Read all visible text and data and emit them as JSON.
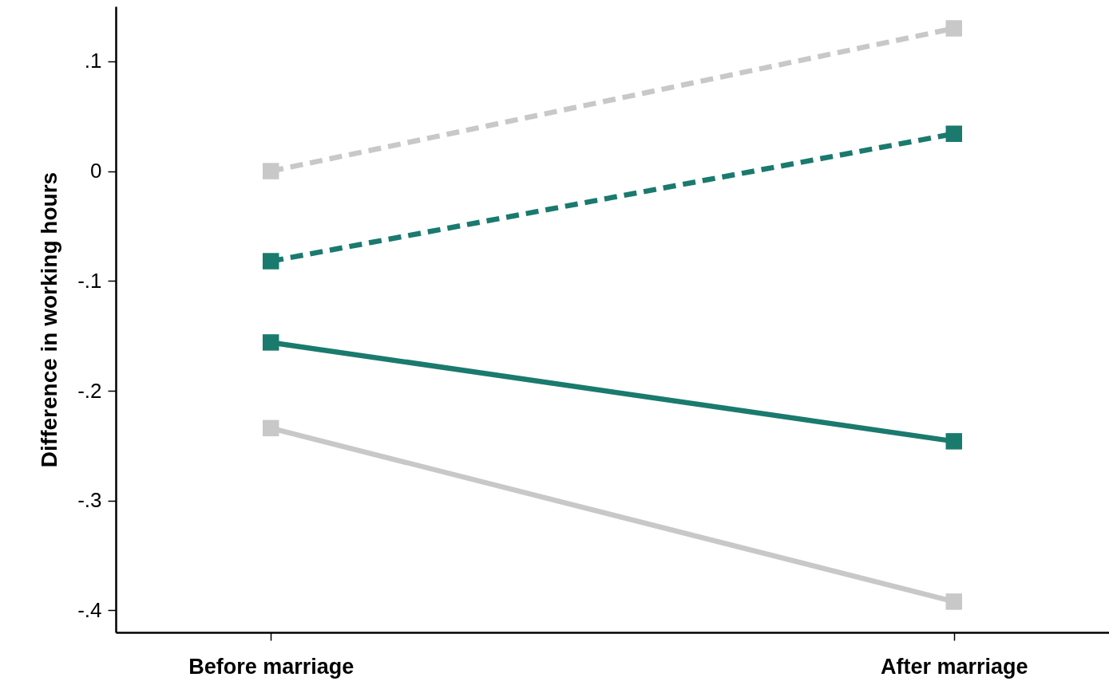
{
  "chart_data": {
    "type": "line",
    "ylabel": "Difference in working hours",
    "categories": [
      "Before marriage",
      "After marriage"
    ],
    "series": [
      {
        "color": "#c8c8c8",
        "line_style": "dashed",
        "values": [
          0.0,
          0.13
        ]
      },
      {
        "color": "#1a7a6e",
        "line_style": "dashed",
        "values": [
          -0.082,
          0.034
        ]
      },
      {
        "color": "#1a7a6e",
        "line_style": "solid",
        "values": [
          -0.156,
          -0.246
        ]
      },
      {
        "color": "#c8c8c8",
        "line_style": "solid",
        "values": [
          -0.234,
          -0.392
        ]
      }
    ],
    "ylim": [
      -0.42,
      0.15
    ],
    "yticks": [
      {
        "value": -0.4,
        "label": "-.4"
      },
      {
        "value": -0.3,
        "label": "-.3"
      },
      {
        "value": -0.2,
        "label": "-.2"
      },
      {
        "value": -0.1,
        "label": "-.1"
      },
      0,
      {
        "value": 0.1,
        "label": ".1"
      }
    ],
    "marker": "square",
    "grid": false
  }
}
